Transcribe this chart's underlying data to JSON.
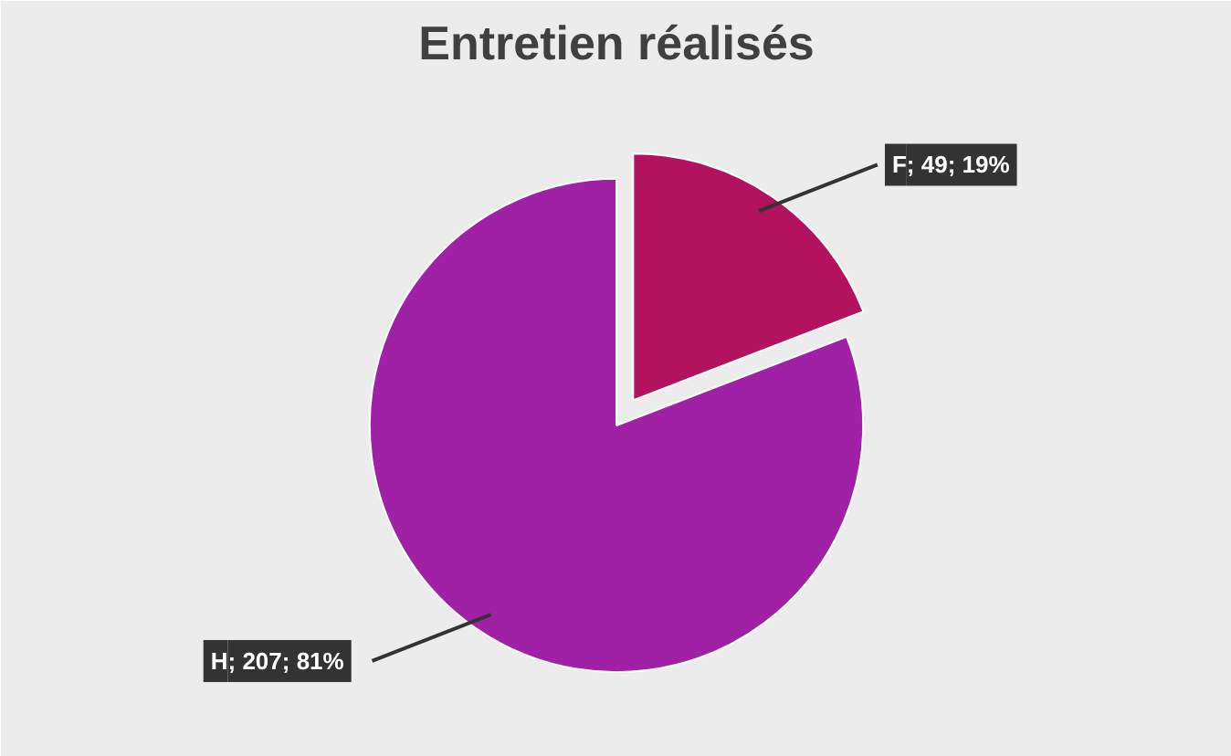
{
  "chart_data": {
    "type": "pie",
    "title": "Entretien réalisés",
    "categories": [
      "F",
      "H"
    ],
    "values": [
      49,
      207
    ],
    "colors": [
      "#b3125f",
      "#a121a6"
    ],
    "value_labels": [
      "; 49; 19%",
      "; 207; 81%"
    ]
  }
}
